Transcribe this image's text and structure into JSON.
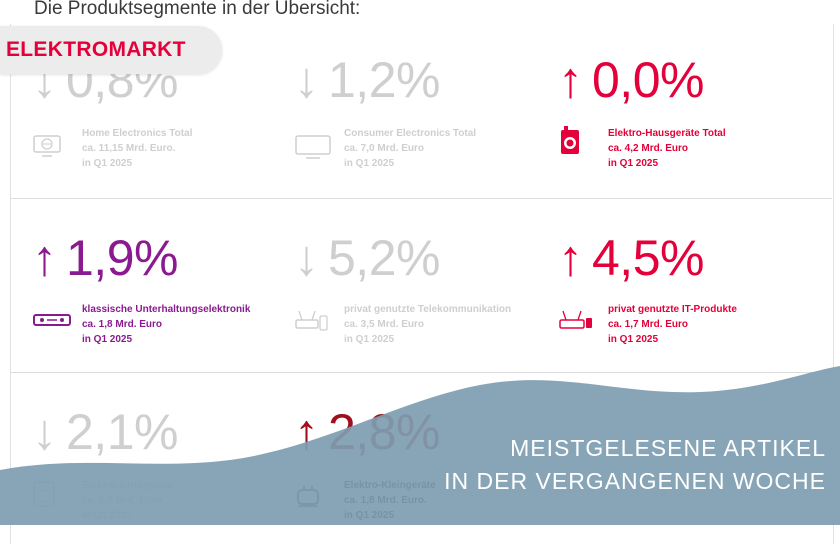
{
  "heading": "Die Produktsegmente in der Übersicht:",
  "logo": {
    "text_a": "ELEKTR",
    "text_o": "O",
    "text_b": "MARKT"
  },
  "segments": [
    {
      "arrow": "↓",
      "value": "0,8%",
      "lines": [
        "Home Electronics Total",
        "ca. 11,15 Mrd. Euro.",
        "in Q1 2025"
      ],
      "color": "#cfcfcf",
      "icon": "globe-monitor-icon"
    },
    {
      "arrow": "↓",
      "value": "1,2%",
      "lines": [
        "Consumer Electronics Total",
        "ca. 7,0 Mrd. Euro",
        "in Q1 2025"
      ],
      "color": "#cfcfcf",
      "icon": "tv-icon"
    },
    {
      "arrow": "↑",
      "value": "0,0%",
      "lines": [
        "Elektro-Hausgeräte Total",
        "ca. 4,2 Mrd. Euro",
        "in Q1 2025"
      ],
      "color": "#e4003a",
      "icon": "washing-machine-icon"
    },
    {
      "arrow": "↑",
      "value": "1,9%",
      "lines": [
        "klassische Unterhaltungselektronik",
        "ca. 1,8 Mrd. Euro",
        "in Q1 2025"
      ],
      "color": "#8a1a8f",
      "icon": "receiver-icon"
    },
    {
      "arrow": "↓",
      "value": "5,2%",
      "lines": [
        "privat genutzte Telekommunikation",
        "ca. 3,5 Mrd. Euro",
        "in Q1 2025"
      ],
      "color": "#cfcfcf",
      "icon": "router-phone-icon"
    },
    {
      "arrow": "↑",
      "value": "4,5%",
      "lines": [
        "privat genutzte IT-Produkte",
        "ca. 1,7 Mrd. Euro",
        "in Q1 2025"
      ],
      "color": "#e4003a",
      "icon": "router-icon"
    },
    {
      "arrow": "↓",
      "value": "2,1%",
      "lines": [
        "Elektro-Großgeräte",
        "ca. 2,4 Mrd. Euro",
        "in Q1 2025"
      ],
      "color": "#cfcfcf",
      "icon": "washer-icon"
    },
    {
      "arrow": "↑",
      "value": "2,8%",
      "lines": [
        "Elektro-Kleingeräte",
        "ca. 1,8 Mrd. Euro.",
        "in Q1 2025"
      ],
      "color": "#a0101c",
      "icon": "toaster-icon"
    }
  ],
  "banner": {
    "line1": "MEISTGELESENE ARTIKEL",
    "line2": "IN DER VERGANGENEN WOCHE",
    "color": "#7e9db1"
  }
}
